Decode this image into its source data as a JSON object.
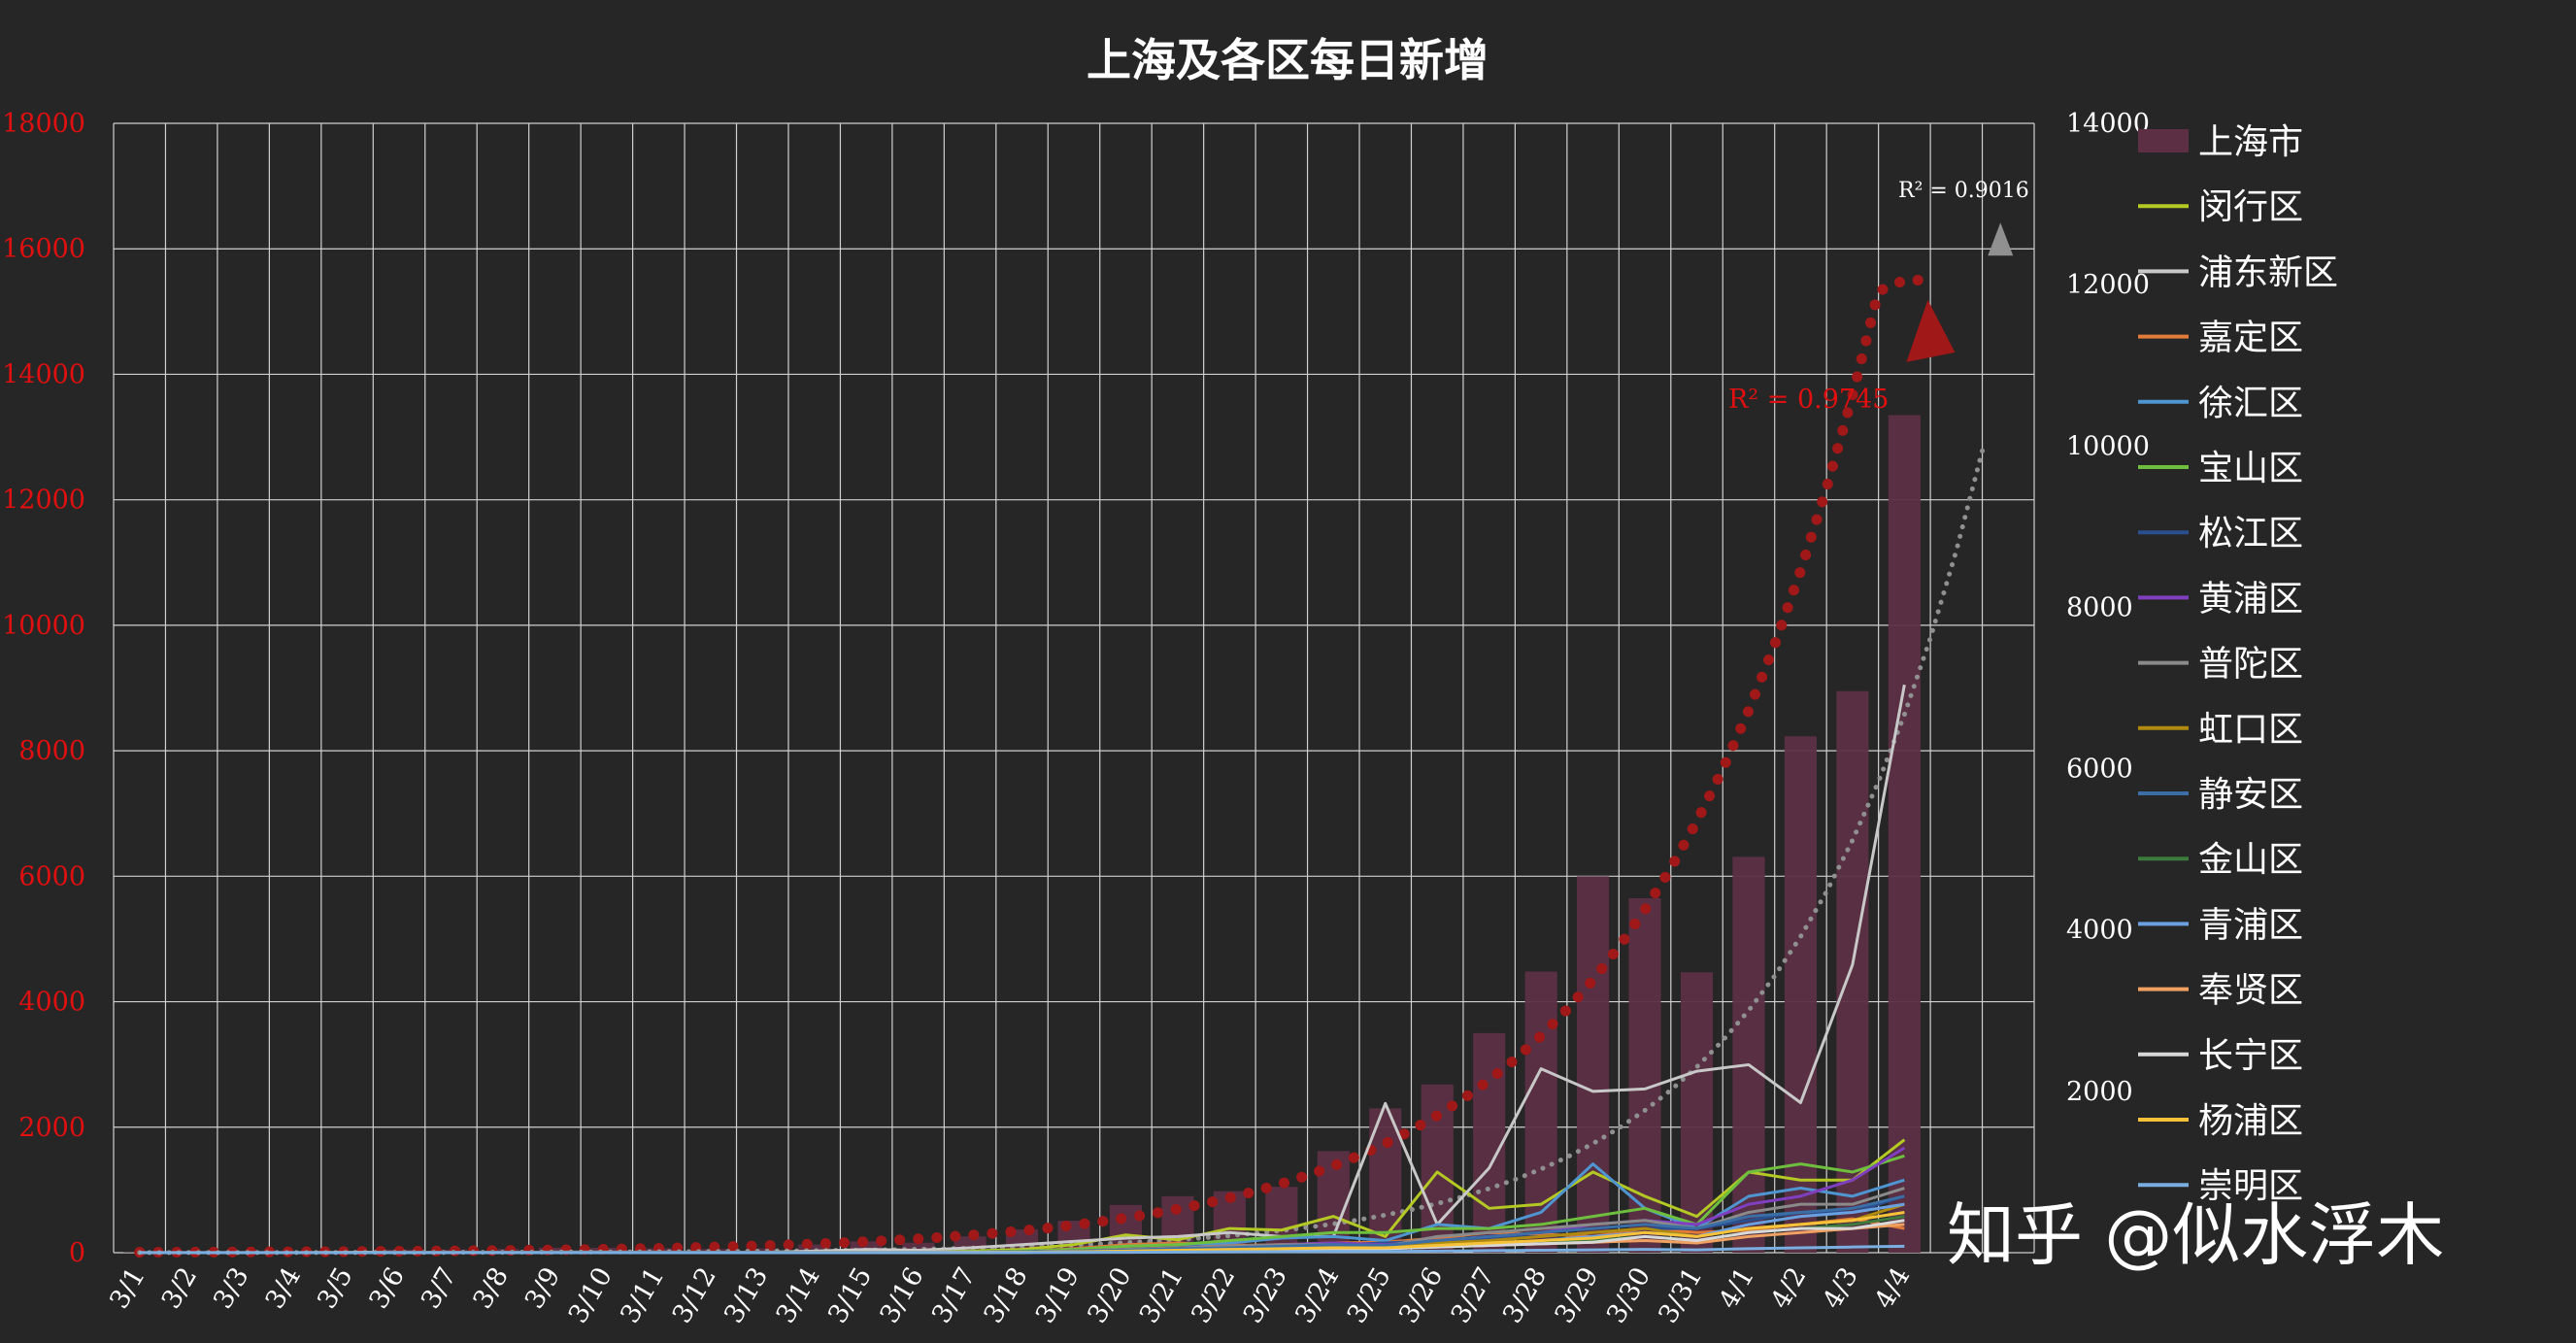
{
  "watermark": "知乎 @似水浮木",
  "chart_data": {
    "type": "bar",
    "title": "上海及各区每日新增",
    "categories": [
      "3/1",
      "3/2",
      "3/3",
      "3/4",
      "3/5",
      "3/6",
      "3/7",
      "3/8",
      "3/9",
      "3/10",
      "3/11",
      "3/12",
      "3/13",
      "3/14",
      "3/15",
      "3/16",
      "3/17",
      "3/18",
      "3/19",
      "3/20",
      "3/21",
      "3/22",
      "3/23",
      "3/24",
      "3/25",
      "3/26",
      "3/27",
      "3/28",
      "3/29",
      "3/30",
      "3/31",
      "4/1",
      "4/2",
      "4/3",
      "4/4"
    ],
    "y_left": {
      "min": 0,
      "max": 18000,
      "ticks": [
        0,
        2000,
        4000,
        6000,
        8000,
        10000,
        12000,
        14000,
        16000,
        18000
      ],
      "color": "#e01010"
    },
    "y_right": {
      "min": 0,
      "max": 14000,
      "ticks": [
        2000,
        4000,
        6000,
        8000,
        10000,
        12000,
        14000
      ],
      "color": "#ffffff"
    },
    "grid": true,
    "legend_position": "right",
    "bar_series": {
      "name": "上海市",
      "color": "#5c2f44",
      "axis": "left",
      "values": [
        5,
        5,
        5,
        8,
        20,
        50,
        50,
        60,
        80,
        80,
        70,
        60,
        70,
        130,
        180,
        160,
        260,
        370,
        510,
        760,
        900,
        980,
        1050,
        1620,
        2300,
        2680,
        3500,
        4480,
        6000,
        5650,
        4470,
        6310,
        8230,
        8950,
        13350
      ]
    },
    "line_series": [
      {
        "name": "闵行区",
        "color": "#b5c924",
        "values": [
          0,
          0,
          0,
          0,
          1,
          2,
          2,
          2,
          3,
          3,
          3,
          3,
          4,
          5,
          8,
          12,
          20,
          40,
          100,
          220,
          160,
          300,
          280,
          450,
          200,
          1000,
          550,
          600,
          1000,
          700,
          450,
          1000,
          900,
          900,
          1400
        ]
      },
      {
        "name": "浦东新区",
        "color": "#c8c8c8",
        "values": [
          1,
          1,
          1,
          2,
          3,
          5,
          5,
          5,
          8,
          8,
          8,
          6,
          5,
          20,
          40,
          30,
          60,
          100,
          140,
          180,
          200,
          250,
          200,
          200,
          1850,
          350,
          1050,
          2280,
          2000,
          2030,
          2250,
          2330,
          1860,
          3570,
          7040
        ]
      },
      {
        "name": "嘉定区",
        "color": "#e07b39",
        "values": [
          0,
          0,
          0,
          0,
          0,
          1,
          1,
          1,
          1,
          1,
          1,
          1,
          1,
          2,
          4,
          6,
          10,
          20,
          50,
          100,
          120,
          90,
          100,
          120,
          130,
          180,
          250,
          230,
          200,
          300,
          250,
          280,
          350,
          420,
          300
        ]
      },
      {
        "name": "徐汇区",
        "color": "#4f95d0",
        "values": [
          0,
          0,
          0,
          0,
          0,
          1,
          1,
          1,
          1,
          1,
          1,
          1,
          1,
          2,
          3,
          4,
          10,
          20,
          40,
          80,
          100,
          120,
          180,
          200,
          150,
          350,
          300,
          500,
          1100,
          550,
          300,
          700,
          800,
          700,
          900
        ]
      },
      {
        "name": "宝山区",
        "color": "#6fbf3f",
        "values": [
          0,
          0,
          0,
          0,
          0,
          1,
          1,
          1,
          1,
          1,
          1,
          1,
          1,
          2,
          3,
          4,
          10,
          20,
          40,
          80,
          100,
          150,
          200,
          250,
          250,
          300,
          300,
          350,
          450,
          550,
          350,
          1000,
          1100,
          1000,
          1200
        ]
      },
      {
        "name": "松江区",
        "color": "#2a4f8f",
        "values": [
          0,
          0,
          0,
          0,
          0,
          1,
          1,
          1,
          1,
          1,
          1,
          1,
          1,
          2,
          3,
          4,
          5,
          10,
          20,
          30,
          50,
          60,
          80,
          100,
          120,
          150,
          180,
          200,
          250,
          300,
          300,
          400,
          500,
          500,
          700
        ]
      },
      {
        "name": "黄浦区",
        "color": "#7f3fbf",
        "values": [
          0,
          0,
          0,
          0,
          0,
          1,
          1,
          1,
          1,
          1,
          1,
          1,
          1,
          2,
          3,
          4,
          5,
          10,
          20,
          40,
          60,
          80,
          100,
          120,
          100,
          150,
          200,
          250,
          350,
          400,
          350,
          600,
          700,
          900,
          1300
        ]
      },
      {
        "name": "普陀区",
        "color": "#8a8a8a",
        "values": [
          0,
          0,
          0,
          0,
          0,
          1,
          1,
          1,
          1,
          1,
          1,
          1,
          1,
          2,
          3,
          4,
          5,
          10,
          20,
          40,
          60,
          80,
          100,
          100,
          80,
          200,
          250,
          300,
          350,
          400,
          300,
          500,
          600,
          600,
          800
        ]
      },
      {
        "name": "虹口区",
        "color": "#b08a0f",
        "values": [
          0,
          0,
          0,
          0,
          0,
          1,
          1,
          1,
          1,
          1,
          1,
          1,
          1,
          2,
          3,
          4,
          5,
          10,
          20,
          30,
          40,
          50,
          60,
          80,
          70,
          120,
          150,
          200,
          250,
          300,
          200,
          300,
          350,
          400,
          600
        ]
      },
      {
        "name": "静安区",
        "color": "#3a6ea5",
        "values": [
          0,
          0,
          0,
          0,
          0,
          1,
          1,
          1,
          1,
          1,
          1,
          1,
          1,
          2,
          3,
          4,
          5,
          10,
          20,
          30,
          50,
          60,
          80,
          100,
          90,
          150,
          200,
          250,
          300,
          350,
          300,
          450,
          500,
          550,
          700
        ]
      },
      {
        "name": "金山区",
        "color": "#3e7a3e",
        "values": [
          0,
          0,
          0,
          0,
          0,
          0,
          0,
          0,
          0,
          0,
          0,
          0,
          0,
          1,
          1,
          2,
          3,
          5,
          10,
          15,
          20,
          30,
          40,
          50,
          50,
          80,
          100,
          120,
          150,
          200,
          150,
          250,
          300,
          350,
          450
        ]
      },
      {
        "name": "青浦区",
        "color": "#6a9fe0",
        "values": [
          0,
          0,
          0,
          0,
          0,
          0,
          0,
          0,
          0,
          0,
          0,
          0,
          0,
          1,
          1,
          2,
          3,
          5,
          10,
          15,
          20,
          30,
          40,
          50,
          50,
          80,
          100,
          150,
          200,
          250,
          200,
          350,
          450,
          500,
          600
        ]
      },
      {
        "name": "奉贤区",
        "color": "#f0a060",
        "values": [
          0,
          0,
          0,
          0,
          0,
          0,
          0,
          0,
          0,
          0,
          0,
          0,
          0,
          1,
          1,
          2,
          3,
          5,
          10,
          15,
          20,
          30,
          40,
          50,
          50,
          70,
          90,
          110,
          130,
          150,
          120,
          200,
          250,
          300,
          350
        ]
      },
      {
        "name": "长宁区",
        "color": "#d8d8d8",
        "values": [
          0,
          0,
          0,
          0,
          0,
          0,
          0,
          0,
          0,
          0,
          0,
          0,
          0,
          1,
          1,
          2,
          3,
          5,
          10,
          15,
          20,
          30,
          40,
          50,
          50,
          70,
          90,
          110,
          130,
          200,
          150,
          250,
          300,
          300,
          400
        ]
      },
      {
        "name": "杨浦区",
        "color": "#f5c23a",
        "values": [
          0,
          0,
          0,
          0,
          0,
          0,
          0,
          0,
          0,
          0,
          0,
          0,
          0,
          1,
          1,
          2,
          3,
          5,
          10,
          20,
          30,
          40,
          50,
          60,
          60,
          90,
          120,
          150,
          180,
          250,
          200,
          300,
          350,
          400,
          500
        ]
      },
      {
        "name": "崇明区",
        "color": "#7aaee0",
        "values": [
          0,
          0,
          0,
          0,
          0,
          0,
          0,
          0,
          0,
          0,
          0,
          0,
          0,
          0,
          0,
          1,
          1,
          2,
          3,
          5,
          8,
          10,
          12,
          15,
          15,
          20,
          25,
          30,
          35,
          40,
          35,
          50,
          60,
          70,
          80
        ]
      }
    ],
    "trendlines": [
      {
        "series": "上海市",
        "label": "R² = 0.9745",
        "color": "#a01818",
        "axis": "left",
        "style": "dotted"
      },
      {
        "series": "浦东新区",
        "label": "R² = 0.9016",
        "color": "#909090",
        "axis": "right",
        "style": "dotted"
      }
    ]
  }
}
